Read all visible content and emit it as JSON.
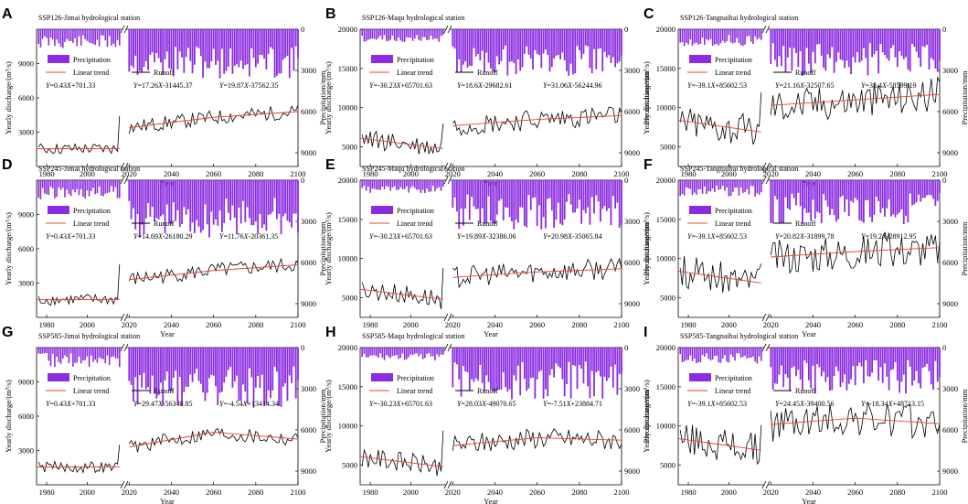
{
  "colors": {
    "precip": "#8B2BE2",
    "runoff": "#000000",
    "trend": "#e8413c"
  },
  "common": {
    "xlabel": "Year",
    "ylabel_left": "Yearly discharge/(m³/s)",
    "ylabel_right": "Precipitation/mm",
    "legend": {
      "precip": "Precipitation",
      "trend": "Linear trend",
      "runoff": "Runoff"
    },
    "x_hist_ticks": [
      1980,
      2000
    ],
    "x_fut_ticks": [
      2020,
      2040,
      2060,
      2080,
      2100
    ],
    "y_right_ticks": [
      0,
      3000,
      6000,
      9000
    ],
    "y_right_range": [
      0,
      10000
    ]
  },
  "chart_data": [
    {
      "label": "A",
      "title": "SSP126-Jimai hydrological station",
      "type": "line",
      "seed": 11,
      "ylim": [
        0,
        12000
      ],
      "yticks": [
        3000,
        6000,
        9000
      ],
      "runoff_base": 1500,
      "runoff_amp": 500,
      "eq": [
        {
          "a": "0.43",
          "b": "+701.33"
        },
        {
          "a": "17.26",
          "b": "-31445.37"
        },
        {
          "a": "19.87",
          "b": "-37562.35"
        }
      ],
      "trend": [
        [
          1975,
          1550
        ],
        [
          2015,
          1570
        ],
        [
          2020,
          3400
        ],
        [
          2060,
          4300
        ],
        [
          2100,
          4800
        ]
      ],
      "precip_hist": [
        400,
        2100
      ],
      "precip_fut": [
        1200,
        3600
      ]
    },
    {
      "label": "B",
      "title": "SSP126-Maqu hydrological station",
      "type": "line",
      "seed": 23,
      "ylim": [
        2500,
        20000
      ],
      "yticks": [
        5000,
        10000,
        15000,
        20000
      ],
      "runoff_base": 5200,
      "runoff_amp": 900,
      "eq": [
        {
          "a": "-30.23",
          "b": "+65701.63"
        },
        {
          "a": "18.6",
          "b": "-29682.61"
        },
        {
          "a": "31.06",
          "b": "-56244.96"
        }
      ],
      "trend": [
        [
          1975,
          6100
        ],
        [
          2015,
          4800
        ],
        [
          2020,
          7700
        ],
        [
          2060,
          8500
        ],
        [
          2100,
          9000
        ]
      ],
      "precip_hist": [
        400,
        1300
      ],
      "precip_fut": [
        1000,
        3400
      ]
    },
    {
      "label": "C",
      "title": "SSP126-Tangnaihai hydrological station",
      "type": "line",
      "seed": 37,
      "ylim": [
        2500,
        20000
      ],
      "yticks": [
        5000,
        10000,
        15000,
        20000
      ],
      "runoff_base": 8000,
      "runoff_amp": 1500,
      "eq": [
        {
          "a": "-39.1",
          "b": "+85602.53"
        },
        {
          "a": "21.16",
          "b": "-32507.65"
        },
        {
          "a": "33.4",
          "b": "-58599.19"
        }
      ],
      "trend": [
        [
          1975,
          8400
        ],
        [
          2015,
          6900
        ],
        [
          2020,
          10300
        ],
        [
          2060,
          11000
        ],
        [
          2100,
          11700
        ]
      ],
      "precip_hist": [
        400,
        1800
      ],
      "precip_fut": [
        1000,
        3400
      ]
    },
    {
      "label": "D",
      "title": "SSP245-Jimai hydrological station",
      "type": "line",
      "seed": 41,
      "ylim": [
        0,
        12000
      ],
      "yticks": [
        3000,
        6000,
        9000
      ],
      "runoff_base": 1500,
      "runoff_amp": 500,
      "eq": [
        {
          "a": "0.43",
          "b": "+701.33"
        },
        {
          "a": "14.69",
          "b": "-26180.29"
        },
        {
          "a": "11.76",
          "b": "-20361.35"
        }
      ],
      "trend": [
        [
          1975,
          1550
        ],
        [
          2015,
          1570
        ],
        [
          2020,
          3300
        ],
        [
          2060,
          4100
        ],
        [
          2100,
          4600
        ]
      ],
      "precip_hist": [
        400,
        2100
      ],
      "precip_fut": [
        1300,
        4200
      ]
    },
    {
      "label": "E",
      "title": "SSP245-Maqu hydrological station",
      "type": "line",
      "seed": 53,
      "ylim": [
        2500,
        20000
      ],
      "yticks": [
        5000,
        10000,
        15000,
        20000
      ],
      "runoff_base": 5200,
      "runoff_amp": 900,
      "eq": [
        {
          "a": "-30.23",
          "b": "+65701.63"
        },
        {
          "a": "19.89",
          "b": "-32386.06"
        },
        {
          "a": "20.98",
          "b": "-35065.84"
        }
      ],
      "trend": [
        [
          1975,
          6100
        ],
        [
          2015,
          4800
        ],
        [
          2020,
          7600
        ],
        [
          2060,
          8300
        ],
        [
          2100,
          8700
        ]
      ],
      "precip_hist": [
        400,
        1300
      ],
      "precip_fut": [
        1000,
        3600
      ]
    },
    {
      "label": "F",
      "title": "SSP245-Tangnaihai hydrological station",
      "type": "line",
      "seed": 67,
      "ylim": [
        2500,
        20000
      ],
      "yticks": [
        5000,
        10000,
        15000,
        20000
      ],
      "runoff_base": 8000,
      "runoff_amp": 1500,
      "eq": [
        {
          "a": "-39.1",
          "b": "+85602.53"
        },
        {
          "a": "20.82",
          "b": "-31899.78"
        },
        {
          "a": "19.2",
          "b": "-28912.95"
        }
      ],
      "trend": [
        [
          1975,
          8400
        ],
        [
          2015,
          6900
        ],
        [
          2020,
          10200
        ],
        [
          2060,
          10900
        ],
        [
          2100,
          11400
        ]
      ],
      "precip_hist": [
        400,
        1800
      ],
      "precip_fut": [
        900,
        3300
      ]
    },
    {
      "label": "G",
      "title": "SSP585-Jimai hydrological station",
      "type": "line",
      "seed": 71,
      "ylim": [
        0,
        12000
      ],
      "yticks": [
        3000,
        6000,
        9000
      ],
      "runoff_base": 1500,
      "runoff_amp": 500,
      "eq": [
        {
          "a": "0.43",
          "b": "+701.33"
        },
        {
          "a": "29.47",
          "b": "-56340.85"
        },
        {
          "a": "-4.54",
          "b": "+13414.34"
        }
      ],
      "trend": [
        [
          1975,
          1550
        ],
        [
          2015,
          1570
        ],
        [
          2020,
          3300
        ],
        [
          2060,
          4600
        ],
        [
          2100,
          4000
        ]
      ],
      "precip_hist": [
        400,
        2100
      ],
      "precip_fut": [
        1300,
        4400
      ]
    },
    {
      "label": "H",
      "title": "SSP585-Maqu hydrological station",
      "type": "line",
      "seed": 83,
      "ylim": [
        2500,
        20000
      ],
      "yticks": [
        5000,
        10000,
        15000,
        20000
      ],
      "runoff_base": 5200,
      "runoff_amp": 900,
      "eq": [
        {
          "a": "-30.23",
          "b": "+65701.63"
        },
        {
          "a": "28.03",
          "b": "-49070.65"
        },
        {
          "a": "-7.51",
          "b": "+23884.71"
        }
      ],
      "trend": [
        [
          1975,
          6100
        ],
        [
          2015,
          4800
        ],
        [
          2020,
          7500
        ],
        [
          2060,
          8500
        ],
        [
          2100,
          8200
        ]
      ],
      "precip_hist": [
        400,
        1300
      ],
      "precip_fut": [
        1000,
        3800
      ]
    },
    {
      "label": "I",
      "title": "SSP585-Tangnaihai hydrological station",
      "type": "line",
      "seed": 97,
      "ylim": [
        2500,
        20000
      ],
      "yticks": [
        5000,
        10000,
        15000,
        20000
      ],
      "runoff_base": 8000,
      "runoff_amp": 1500,
      "eq": [
        {
          "a": "-39.1",
          "b": "+85602.53"
        },
        {
          "a": "24.45",
          "b": "-39400.56"
        },
        {
          "a": "-18.34",
          "b": "+48713.15"
        }
      ],
      "trend": [
        [
          1975,
          8400
        ],
        [
          2015,
          6900
        ],
        [
          2020,
          10200
        ],
        [
          2060,
          11000
        ],
        [
          2100,
          10300
        ]
      ],
      "precip_hist": [
        400,
        1800
      ],
      "precip_fut": [
        900,
        3400
      ]
    }
  ]
}
